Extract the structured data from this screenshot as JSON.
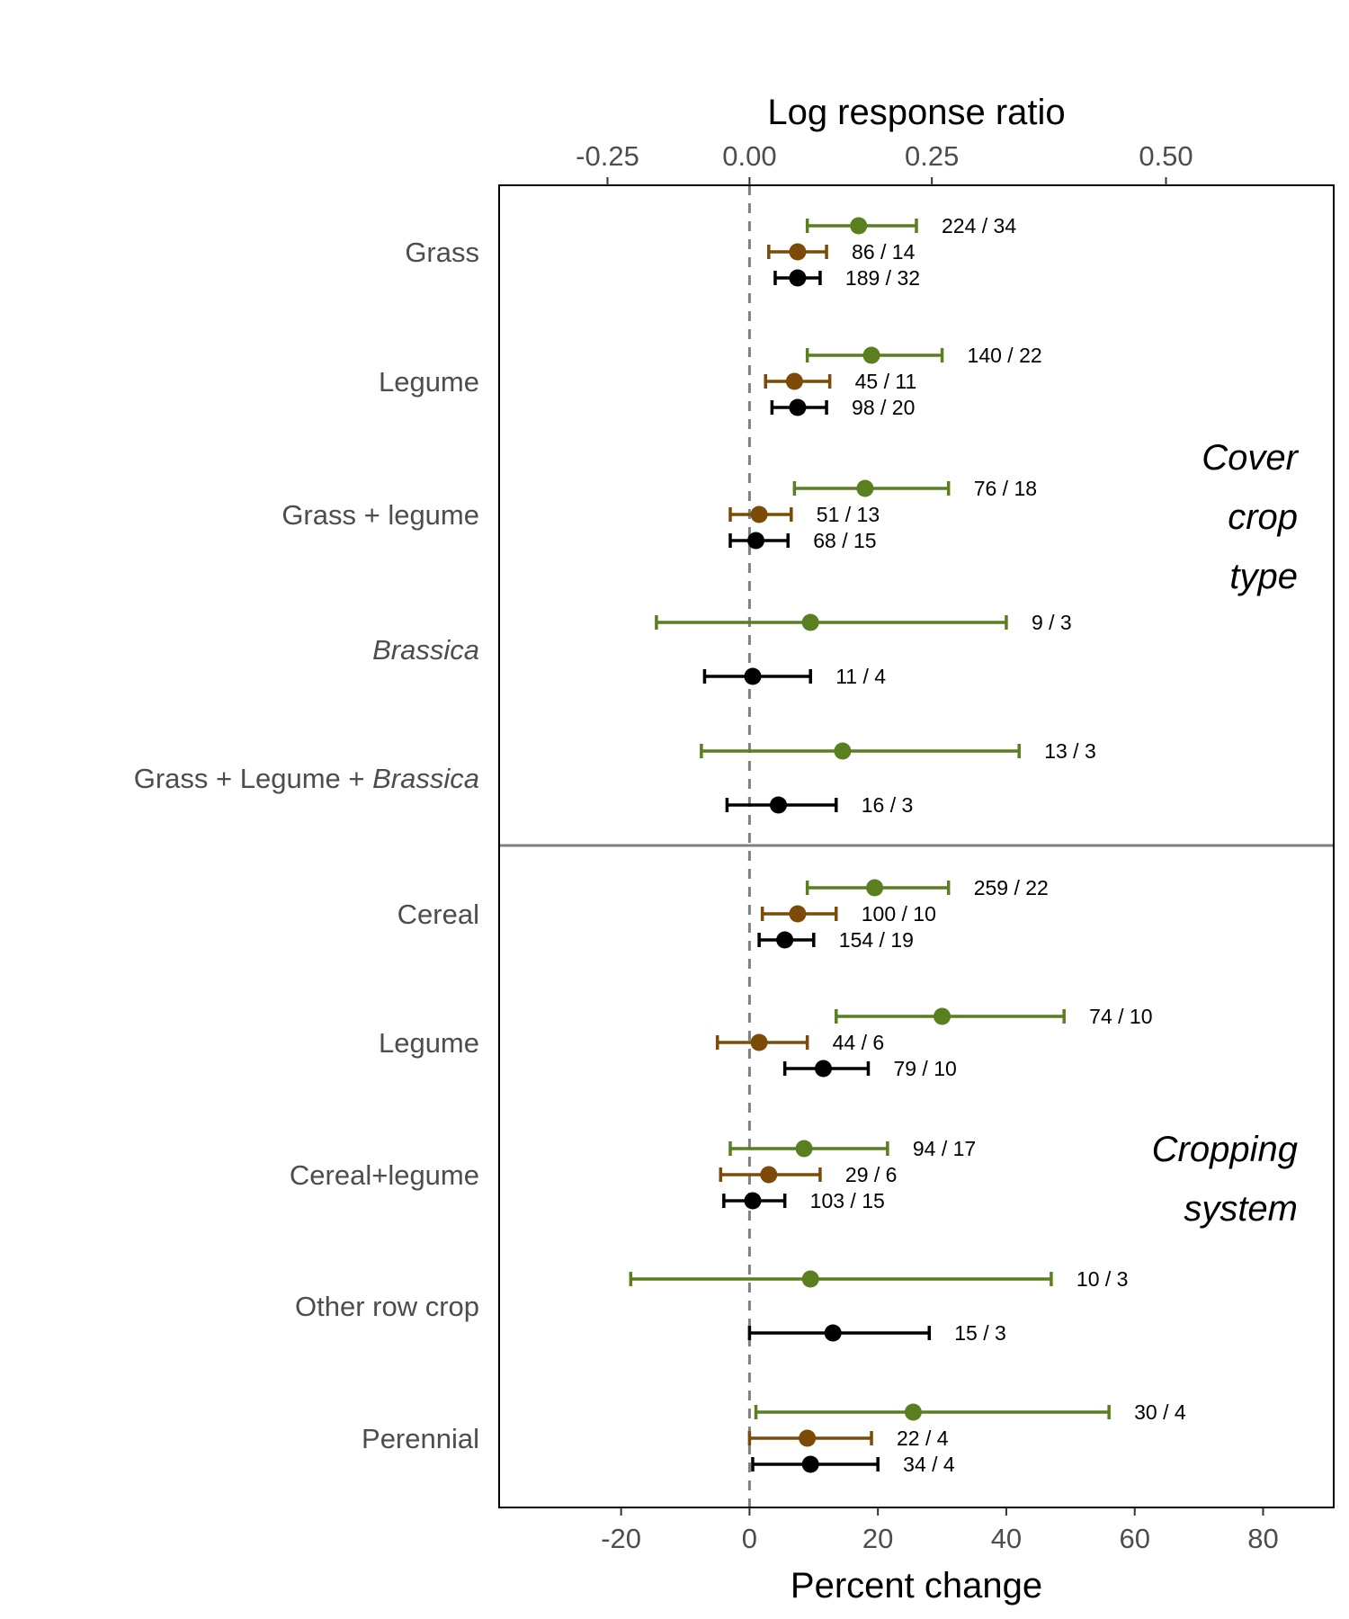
{
  "colors": {
    "green": "#5a7f1e",
    "brown": "#7b4b07",
    "black": "#000000",
    "zero_line": "#808080",
    "divider": "#808080"
  },
  "chart_data": {
    "type": "forest-plot",
    "xlabel": "Percent change",
    "x2label": "Log response ratio",
    "xlim": [
      -39,
      91
    ],
    "x_ticks": [
      "-20",
      "0",
      "20",
      "40",
      "60",
      "80"
    ],
    "x2_ticks": [
      "-0.25",
      "0.00",
      "0.25",
      "0.50"
    ],
    "grid": false,
    "groups": [
      {
        "label_lines": [
          "Cover",
          "crop",
          "type"
        ],
        "categories": [
          {
            "label": [
              {
                "text": "Grass",
                "italic": false
              }
            ],
            "points": [
              {
                "color": "green",
                "est": 17,
                "lo": 9,
                "hi": 26,
                "n": "224 / 34"
              },
              {
                "color": "brown",
                "est": 7.5,
                "lo": 3,
                "hi": 12,
                "n": "86 / 14"
              },
              {
                "color": "black",
                "est": 7.5,
                "lo": 4,
                "hi": 11,
                "n": "189 / 32"
              }
            ]
          },
          {
            "label": [
              {
                "text": "Legume",
                "italic": false
              }
            ],
            "points": [
              {
                "color": "green",
                "est": 19,
                "lo": 9,
                "hi": 30,
                "n": "140 / 22"
              },
              {
                "color": "brown",
                "est": 7,
                "lo": 2.5,
                "hi": 12.5,
                "n": "45 / 11"
              },
              {
                "color": "black",
                "est": 7.5,
                "lo": 3.5,
                "hi": 12,
                "n": "98 / 20"
              }
            ]
          },
          {
            "label": [
              {
                "text": "Grass + legume",
                "italic": false
              }
            ],
            "points": [
              {
                "color": "green",
                "est": 18,
                "lo": 7,
                "hi": 31,
                "n": "76 / 18"
              },
              {
                "color": "brown",
                "est": 1.5,
                "lo": -3,
                "hi": 6.5,
                "n": "51 / 13"
              },
              {
                "color": "black",
                "est": 1,
                "lo": -3,
                "hi": 6,
                "n": "68 / 15"
              }
            ]
          },
          {
            "label": [
              {
                "text": "Brassica",
                "italic": true
              }
            ],
            "points": [
              {
                "color": "green",
                "est": 9.5,
                "lo": -14.5,
                "hi": 40,
                "n": "9 / 3"
              },
              {
                "color": "black",
                "est": 0.5,
                "lo": -7,
                "hi": 9.5,
                "n": "11 / 4"
              }
            ]
          },
          {
            "label": [
              {
                "text": "Grass + Legume + ",
                "italic": false
              },
              {
                "text": "Brassica",
                "italic": true
              }
            ],
            "points": [
              {
                "color": "green",
                "est": 14.5,
                "lo": -7.5,
                "hi": 42,
                "n": "13 / 3"
              },
              {
                "color": "black",
                "est": 4.5,
                "lo": -3.5,
                "hi": 13.5,
                "n": "16 / 3"
              }
            ]
          }
        ]
      },
      {
        "label_lines": [
          "Cropping",
          "system"
        ],
        "categories": [
          {
            "label": [
              {
                "text": "Cereal",
                "italic": false
              }
            ],
            "points": [
              {
                "color": "green",
                "est": 19.5,
                "lo": 9,
                "hi": 31,
                "n": "259 / 22"
              },
              {
                "color": "brown",
                "est": 7.5,
                "lo": 2,
                "hi": 13.5,
                "n": "100 / 10"
              },
              {
                "color": "black",
                "est": 5.5,
                "lo": 1.5,
                "hi": 10,
                "n": "154 / 19"
              }
            ]
          },
          {
            "label": [
              {
                "text": "Legume",
                "italic": false
              }
            ],
            "points": [
              {
                "color": "green",
                "est": 30,
                "lo": 13.5,
                "hi": 49,
                "n": "74 / 10"
              },
              {
                "color": "brown",
                "est": 1.5,
                "lo": -5,
                "hi": 9,
                "n": "44 / 6"
              },
              {
                "color": "black",
                "est": 11.5,
                "lo": 5.5,
                "hi": 18.5,
                "n": "79 / 10"
              }
            ]
          },
          {
            "label": [
              {
                "text": "Cereal+legume",
                "italic": false
              }
            ],
            "points": [
              {
                "color": "green",
                "est": 8.5,
                "lo": -3,
                "hi": 21.5,
                "n": "94 / 17"
              },
              {
                "color": "brown",
                "est": 3,
                "lo": -4.5,
                "hi": 11,
                "n": "29 / 6"
              },
              {
                "color": "black",
                "est": 0.5,
                "lo": -4,
                "hi": 5.5,
                "n": "103 / 15"
              }
            ]
          },
          {
            "label": [
              {
                "text": "Other row crop",
                "italic": false
              }
            ],
            "points": [
              {
                "color": "green",
                "est": 9.5,
                "lo": -18.5,
                "hi": 47,
                "n": "10 / 3"
              },
              {
                "color": "black",
                "est": 13,
                "lo": 0,
                "hi": 28,
                "n": "15 / 3"
              }
            ]
          },
          {
            "label": [
              {
                "text": "Perennial",
                "italic": false
              }
            ],
            "points": [
              {
                "color": "green",
                "est": 25.5,
                "lo": 1,
                "hi": 56,
                "n": "30 / 4"
              },
              {
                "color": "brown",
                "est": 9,
                "lo": 0,
                "hi": 19,
                "n": "22 / 4"
              },
              {
                "color": "black",
                "est": 9.5,
                "lo": 0.5,
                "hi": 20,
                "n": "34 / 4"
              }
            ]
          }
        ]
      }
    ]
  }
}
